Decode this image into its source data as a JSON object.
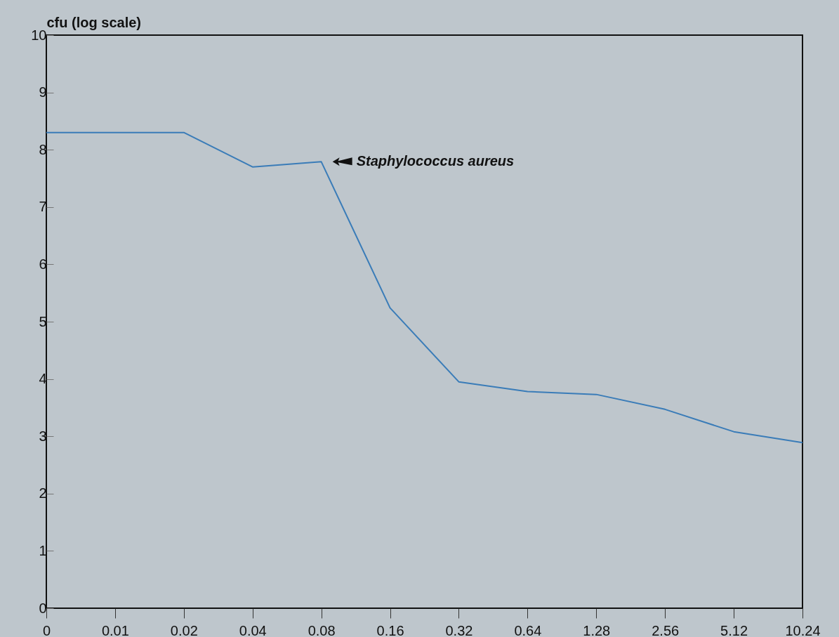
{
  "chart_data": {
    "type": "line",
    "categories": [
      "0",
      "0.01",
      "0.02",
      "0.04",
      "0.08",
      "0.16",
      "0.32",
      "0.64",
      "1.28",
      "2.56",
      "5.12",
      "10.24"
    ],
    "series": [
      {
        "color": "#3a7cb8",
        "values": [
          8.3,
          8.3,
          8.3,
          7.7,
          7.79,
          5.24,
          3.95,
          3.78,
          3.73,
          3.47,
          3.08,
          2.89
        ]
      }
    ],
    "ylabel": "cfu (log scale)",
    "ylim": [
      0,
      10
    ],
    "yticks": [
      0,
      1,
      2,
      3,
      4,
      5,
      6,
      7,
      8,
      9,
      10
    ],
    "annotations": [
      {
        "text": "Staphylococcus aureus",
        "x": "0.08",
        "y": 7.79
      }
    ],
    "grid": false,
    "marker": "none",
    "line_style": "solid"
  }
}
